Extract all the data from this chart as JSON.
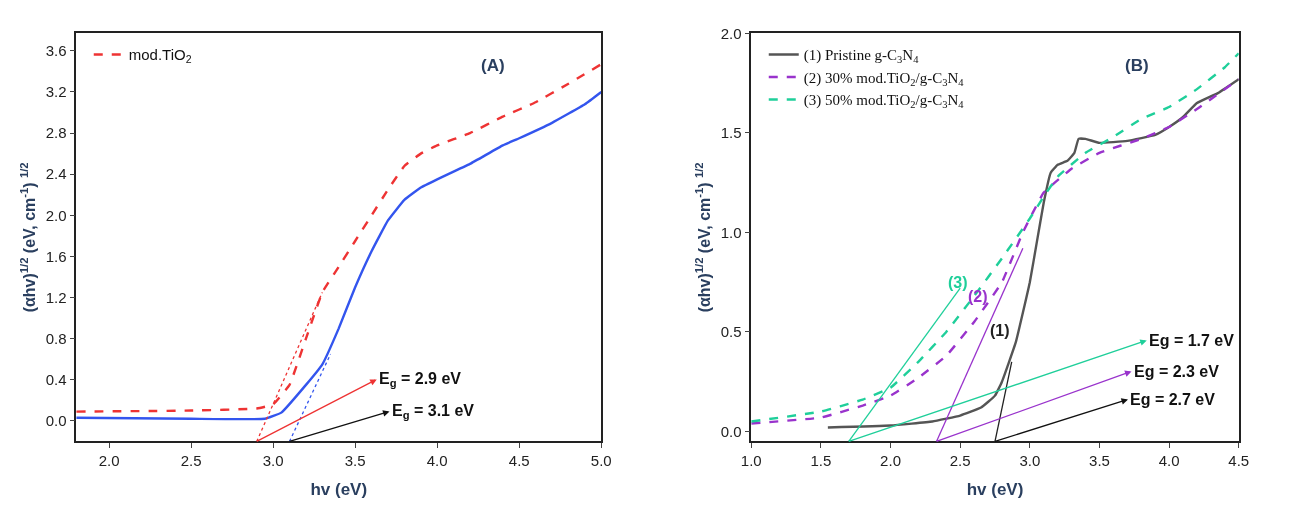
{
  "chart_data": [
    {
      "type": "line",
      "xlabel": "hv (eV)",
      "ylabel": "(αhv)$^{1/2}$ (eV, cm$^{-1}$) $^{1/2}$",
      "xlim": [
        1.8,
        5.0
      ],
      "ylim": [
        -0.2,
        3.77
      ],
      "xticks": [
        {
          "value": 2,
          "label": "2.0"
        },
        2.5,
        {
          "value": 3,
          "label": "3.0"
        },
        3.5,
        {
          "value": 4,
          "label": "4.0"
        },
        4.5,
        {
          "value": 5,
          "label": "5.0"
        }
      ],
      "yticks": [
        {
          "value": 0,
          "label": "0.0"
        },
        0.4,
        0.8,
        1.2,
        1.6,
        {
          "value": 2,
          "label": "2.0"
        },
        2.4,
        2.8,
        3.2,
        3.6
      ],
      "legend": "top left",
      "series": [
        {
          "color": "#3355ee",
          "line_style": "solid",
          "x": [
            1.8,
            2.5,
            2.95,
            3.05,
            3.2,
            3.3,
            3.4,
            3.5,
            3.6,
            3.7,
            3.8,
            3.9,
            4.0,
            4.2,
            4.4,
            4.5,
            4.7,
            4.9,
            5.0
          ],
          "values": [
            0.03,
            0.02,
            0.02,
            0.08,
            0.35,
            0.55,
            0.9,
            1.3,
            1.65,
            1.95,
            2.15,
            2.27,
            2.35,
            2.5,
            2.68,
            2.75,
            2.9,
            3.08,
            3.2
          ]
        },
        {
          "name": "mod.TiO$_{2}$",
          "color": "#ee3333",
          "line_style": "dashed",
          "x": [
            1.8,
            2.5,
            2.9,
            3.0,
            3.1,
            3.2,
            3.3,
            3.4,
            3.5,
            3.6,
            3.7,
            3.8,
            3.9,
            4.0,
            4.2,
            4.4,
            4.6,
            4.8,
            5.0
          ],
          "values": [
            0.09,
            0.1,
            0.12,
            0.16,
            0.35,
            0.8,
            1.25,
            1.5,
            1.75,
            2.0,
            2.25,
            2.48,
            2.6,
            2.68,
            2.8,
            2.96,
            3.1,
            3.28,
            3.47
          ]
        },
        {
          "color": "#ee3333",
          "line_style": "dotted",
          "x": [
            2.9,
            3.3
          ],
          "values": [
            -0.2,
            1.25
          ]
        },
        {
          "color": "#3355ee",
          "line_style": "dotted",
          "x": [
            3.1,
            3.35
          ],
          "values": [
            -0.2,
            0.65
          ]
        }
      ],
      "annotations": [
        "(A)",
        {
          "text": "E$_{g}$ = 2.9 eV",
          "x": 2.9,
          "y": -0.2
        },
        {
          "text": "E$_{g}$ = 3.1 eV",
          "x": 3.1,
          "y": -0.2
        }
      ]
    },
    {
      "type": "line",
      "xlabel": "hv (eV)",
      "ylabel": "(αhv)$^{1/2}$ (eV, cm$^{-1}$) $^{1/2}$",
      "xlim": [
        1.0,
        4.5
      ],
      "ylim": [
        -0.05,
        2.0
      ],
      "xticks": [
        {
          "value": 1,
          "label": "1.0"
        },
        1.5,
        {
          "value": 2,
          "label": "2.0"
        },
        2.5,
        {
          "value": 3,
          "label": "3.0"
        },
        3.5,
        {
          "value": 4,
          "label": "4.0"
        },
        4.5
      ],
      "yticks": [
        {
          "value": 0,
          "label": "0.0"
        },
        0.5,
        {
          "value": 1,
          "label": "1.0"
        },
        1.5,
        {
          "value": 2,
          "label": "2.0"
        }
      ],
      "legend": "top left",
      "series": [
        {
          "name": "(1) Pristine g-C$_{3}$N$_{4}$",
          "color": "#555555",
          "line_style": "solid",
          "x": [
            1.55,
            2.0,
            2.3,
            2.5,
            2.65,
            2.75,
            2.8,
            2.9,
            3.0,
            3.05,
            3.1,
            3.15,
            3.2,
            3.27,
            3.32,
            3.35,
            3.4,
            3.5,
            3.7,
            3.9,
            4.0,
            4.1,
            4.2,
            4.35,
            4.5
          ],
          "values": [
            0.02,
            0.03,
            0.05,
            0.08,
            0.12,
            0.18,
            0.25,
            0.45,
            0.75,
            0.95,
            1.15,
            1.3,
            1.34,
            1.36,
            1.4,
            1.47,
            1.47,
            1.45,
            1.46,
            1.49,
            1.53,
            1.58,
            1.65,
            1.7,
            1.77
          ]
        },
        {
          "name": "(2) 30% mod.TiO$_{2}$/g-C$_{3}$N$_{4}$",
          "color": "#9933cc",
          "line_style": "dashed",
          "x": [
            1.0,
            1.5,
            1.8,
            2.0,
            2.2,
            2.4,
            2.6,
            2.8,
            2.95,
            3.1,
            3.3,
            3.5,
            3.8,
            4.0,
            4.2,
            4.5
          ],
          "values": [
            0.04,
            0.07,
            0.13,
            0.18,
            0.27,
            0.38,
            0.55,
            0.75,
            1.0,
            1.2,
            1.32,
            1.4,
            1.47,
            1.53,
            1.62,
            1.77
          ]
        },
        {
          "name": "(3) 50% mod.TiO$_{2}$/g-C$_{3}$N$_{4}$",
          "color": "#1fcf9a",
          "line_style": "dashed",
          "x": [
            1.0,
            1.5,
            1.8,
            2.0,
            2.2,
            2.4,
            2.6,
            2.8,
            3.0,
            3.1,
            3.2,
            3.4,
            3.6,
            3.8,
            4.0,
            4.2,
            4.4,
            4.5
          ],
          "values": [
            0.05,
            0.1,
            0.16,
            0.22,
            0.35,
            0.5,
            0.68,
            0.87,
            1.07,
            1.18,
            1.28,
            1.4,
            1.48,
            1.57,
            1.63,
            1.72,
            1.83,
            1.9
          ]
        },
        {
          "color": "#1fcf9a",
          "line_style": "solid",
          "x": [
            1.7,
            2.5
          ],
          "values": [
            -0.05,
            0.72
          ]
        },
        {
          "color": "#9933cc",
          "line_style": "solid",
          "x": [
            2.33,
            2.95
          ],
          "values": [
            -0.05,
            0.92
          ]
        },
        {
          "color": "#222222",
          "line_style": "solid",
          "x": [
            2.75,
            2.87
          ],
          "values": [
            -0.05,
            0.35
          ]
        }
      ],
      "annotations": [
        "(B)",
        {
          "text": "Eg = 1.7 eV",
          "x": 1.7,
          "y": -0.05
        },
        {
          "text": "Eg = 2.3 eV",
          "x": 2.33,
          "y": -0.05
        },
        {
          "text": "Eg = 2.7 eV",
          "x": 2.75,
          "y": -0.05
        },
        "(3)",
        "(2)",
        "(1)"
      ]
    }
  ]
}
